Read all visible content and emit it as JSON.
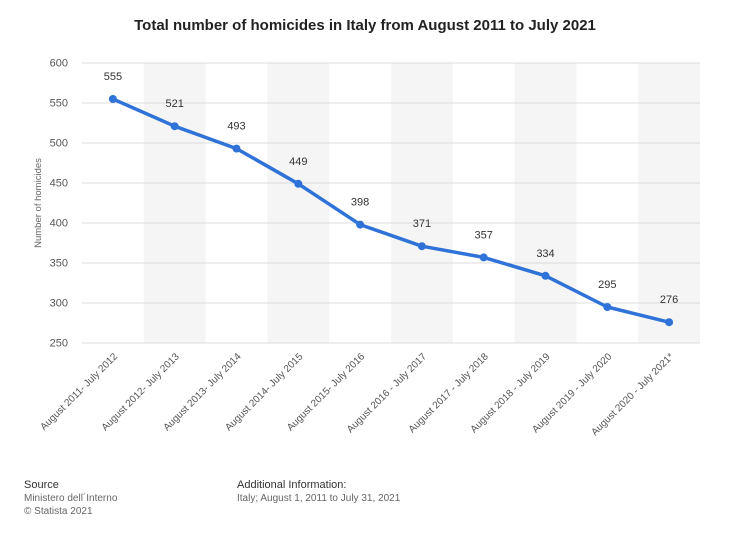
{
  "chart_data": {
    "type": "line",
    "title": "Total number of homicides in Italy from August 2011 to July 2021",
    "xlabel": "",
    "ylabel": "Number of homicides",
    "ylim": [
      250,
      600
    ],
    "yticks": [
      250,
      300,
      350,
      400,
      450,
      500,
      550,
      600
    ],
    "grid": true,
    "legend": "none",
    "categories": [
      "August 2011- July 2012",
      "August 2012- July 2013",
      "August 2013- July 2014",
      "August 2014- July 2015",
      "August 2015- July 2016",
      "August 2016 - July 2017",
      "August 2017 - July 2018",
      "August 2018 - July 2019",
      "August 2019 - July 2020",
      "August 2020 - July 2021*"
    ],
    "series": [
      {
        "name": "Number of homicides",
        "values": [
          555,
          521,
          493,
          449,
          398,
          371,
          357,
          334,
          295,
          276
        ]
      }
    ],
    "line_color": "#2f73d8"
  },
  "footer": {
    "source_heading": "Source",
    "source_lines": [
      "Ministero dell´Interno",
      "© Statista 2021"
    ],
    "info_heading": "Additional Information:",
    "info_lines": [
      "Italy; August 1, 2011 to July 31, 2021"
    ]
  }
}
